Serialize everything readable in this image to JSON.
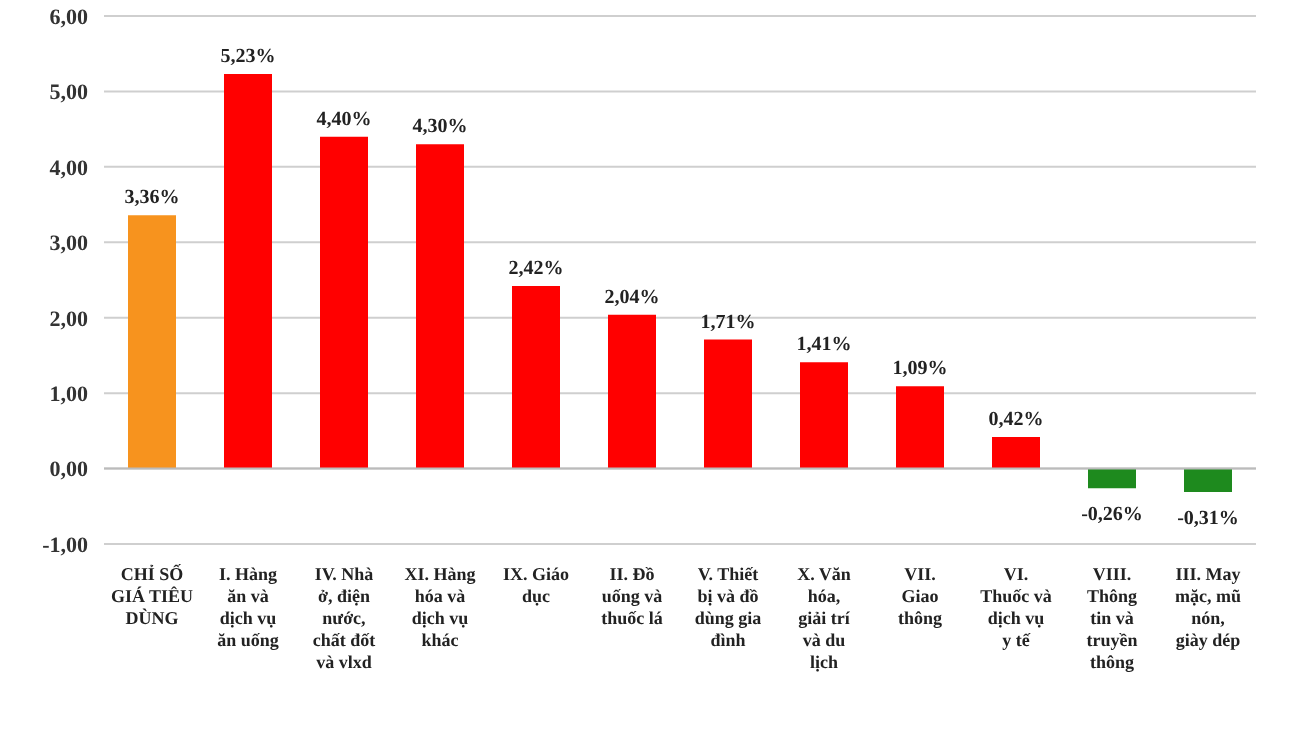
{
  "chart_data": {
    "type": "bar",
    "categories": [
      "CHỈ SỐ GIÁ TIÊU DÙNG",
      "I. Hàng ăn và dịch vụ ăn uống",
      "IV. Nhà ở, điện nước, chất đốt và vlxd",
      "XI. Hàng hóa và dịch vụ khác",
      "IX. Giáo dục",
      "II. Đồ uống và thuốc lá",
      "V. Thiết bị và đồ dùng gia đình",
      "X. Văn hóa, giải trí và du lịch",
      "VII. Giao thông",
      "VI. Thuốc và dịch vụ y tế",
      "VIII. Thông tin và truyền thông",
      "III. May mặc, mũ nón, giày dép"
    ],
    "values": [
      3.36,
      5.23,
      4.4,
      4.3,
      2.42,
      2.04,
      1.71,
      1.41,
      1.09,
      0.42,
      -0.26,
      -0.31
    ],
    "colors": [
      "#f7931e",
      "#ff0000",
      "#ff0000",
      "#ff0000",
      "#ff0000",
      "#ff0000",
      "#ff0000",
      "#ff0000",
      "#ff0000",
      "#ff0000",
      "#1e8a1e",
      "#1e8a1e"
    ],
    "value_labels": [
      "3,36%",
      "5,23%",
      "4,40%",
      "4,30%",
      "2,42%",
      "2,04%",
      "1,71%",
      "1,41%",
      "1,09%",
      "0,42%",
      "-0,26%",
      "-0,31%"
    ],
    "ylim": [
      -1,
      6
    ],
    "yticks": [
      {
        "value": -1,
        "label": "-1,00"
      },
      {
        "value": 0,
        "label": "0,00"
      },
      {
        "value": 1,
        "label": "1,00"
      },
      {
        "value": 2,
        "label": "2,00"
      },
      {
        "value": 3,
        "label": "3,00"
      },
      {
        "value": 4,
        "label": "4,00"
      },
      {
        "value": 5,
        "label": "5,00"
      },
      {
        "value": 6,
        "label": "6,00"
      }
    ],
    "grid": "y"
  }
}
